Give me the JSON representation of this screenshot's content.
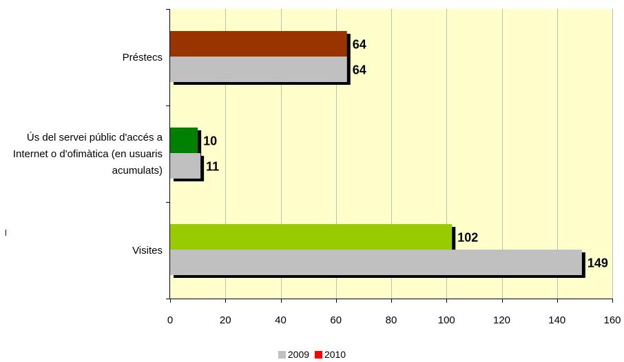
{
  "chart_data": {
    "type": "bar",
    "orientation": "horizontal",
    "categories": [
      "Préstecs",
      "Ús del servei públic d'accés a Internet o d'ofimàtica (en usuaris acumulats)",
      "Visites"
    ],
    "series": [
      {
        "name": "2009",
        "values": [
          64,
          11,
          149
        ],
        "color": "#c0c0c0"
      },
      {
        "name": "2010",
        "values": [
          64,
          10,
          102
        ],
        "bar_colors": [
          "#993300",
          "#008000",
          "#99cc00"
        ],
        "color": "#ff0000"
      }
    ],
    "data_labels": {
      "2009": [
        "64",
        "11",
        "149"
      ],
      "2010": [
        "64",
        "10",
        "102"
      ]
    },
    "xlim": [
      0,
      160
    ],
    "ticks": [
      0,
      20,
      40,
      60,
      80,
      100,
      120,
      140,
      160
    ],
    "tick_labels": [
      "0",
      "20",
      "40",
      "60",
      "80",
      "100",
      "120",
      "140",
      "160"
    ],
    "title": "",
    "xlabel": "",
    "ylabel": "",
    "plot_background": "#ffffcc",
    "grid": true,
    "legend_position": "bottom"
  }
}
